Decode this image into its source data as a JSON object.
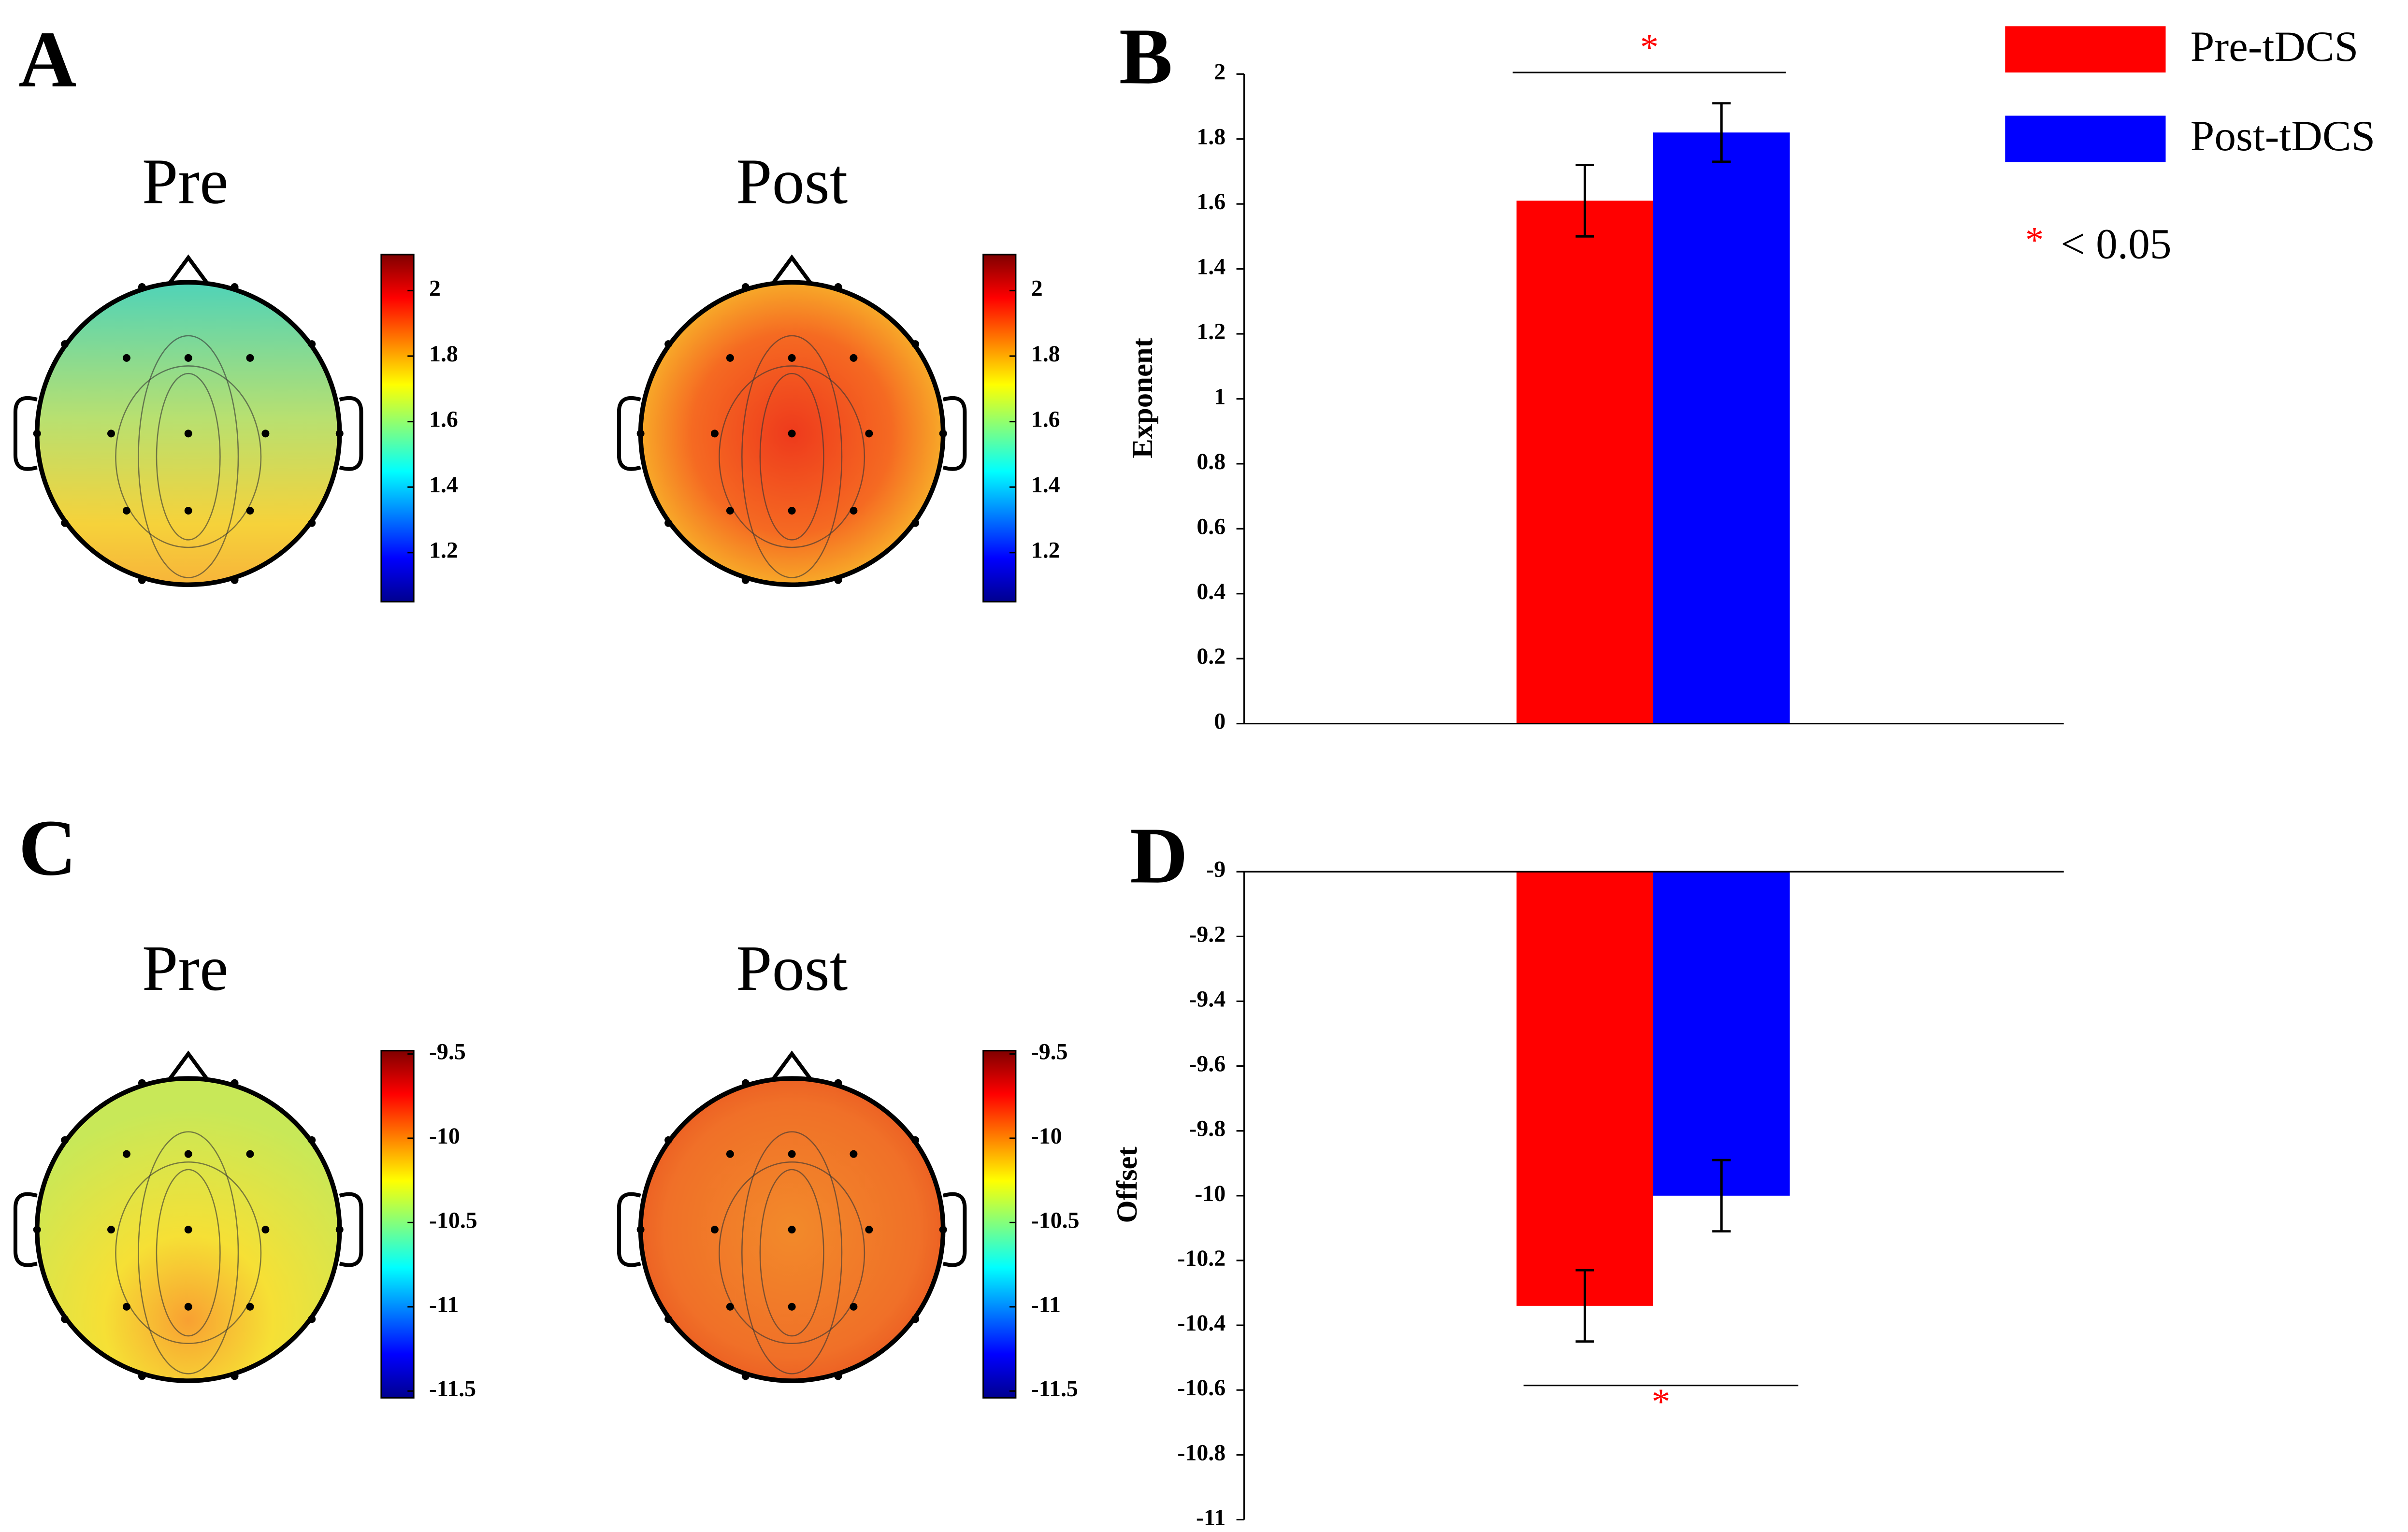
{
  "chart_data": [
    {
      "type": "topomap",
      "panel": "A",
      "title": "Pre",
      "clim": [
        1.05,
        2.11
      ],
      "cticks": [
        1.2,
        1.4,
        1.6,
        1.8,
        2
      ]
    },
    {
      "type": "topomap",
      "title": "Post",
      "clim": [
        1.05,
        2.11
      ],
      "cticks": [
        1.2,
        1.4,
        1.6,
        1.8,
        2
      ]
    },
    {
      "type": "bar",
      "panel": "B",
      "ylabel": "Exponent",
      "categories": [
        null
      ],
      "series": [
        {
          "name": "Pre-tDCS",
          "color": "#ff0000",
          "values": [
            1.61
          ],
          "errors": [
            0.11
          ]
        },
        {
          "name": "Post-tDCS",
          "color": "#0000ff",
          "values": [
            1.82
          ],
          "errors": [
            0.09
          ]
        }
      ],
      "ylim": [
        0,
        2
      ],
      "yticks": [
        0,
        0.2,
        0.4,
        0.6,
        0.8,
        1,
        1.2,
        1.4,
        1.6,
        1.8,
        2
      ],
      "annotation": "*",
      "legend": "upper right",
      "note": "< 0.05"
    },
    {
      "type": "topomap",
      "panel": "C",
      "title": "Pre",
      "clim": [
        -11.54,
        -9.48
      ],
      "cticks": [
        -11.5,
        -11,
        -10.5,
        -10,
        -9.5
      ]
    },
    {
      "type": "topomap",
      "title": "Post",
      "clim": [
        -11.54,
        -9.48
      ],
      "cticks": [
        -11.5,
        -11,
        -10.5,
        -10,
        -9.5
      ]
    },
    {
      "type": "bar",
      "panel": "D",
      "ylabel": "Offset",
      "categories": [
        null
      ],
      "series": [
        {
          "name": "Pre-tDCS",
          "color": "#ff0000",
          "values": [
            -10.34
          ],
          "errors": [
            0.11
          ]
        },
        {
          "name": "Post-tDCS",
          "color": "#0000ff",
          "values": [
            -10.0
          ],
          "errors": [
            0.11
          ]
        }
      ],
      "ylim": [
        -11,
        -9
      ],
      "yticks": [
        -11,
        -10.8,
        -10.6,
        -10.4,
        -10.2,
        -10,
        -9.8,
        -9.6,
        -9.4,
        -9.2,
        -9
      ],
      "annotation": "*"
    }
  ]
}
